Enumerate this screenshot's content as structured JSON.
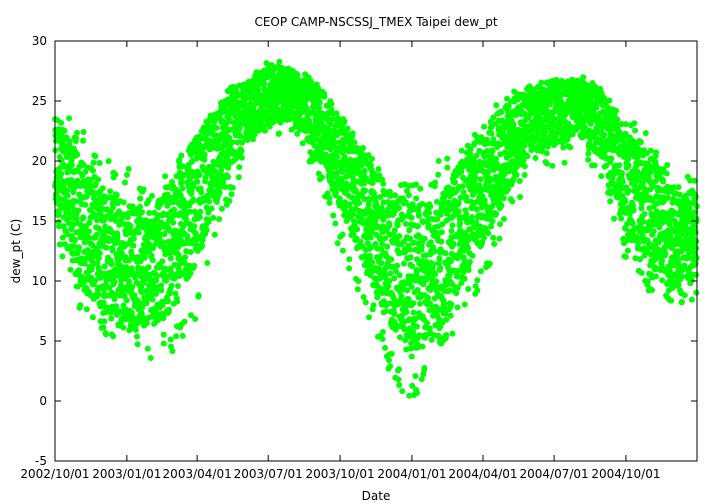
{
  "chart_data": {
    "type": "scatter",
    "title": "CEOP CAMP-NSCSSJ_TMEX Taipei  dew_pt",
    "xlabel": "Date",
    "ylabel": "dew_pt (C)",
    "ylim": [
      -5,
      30
    ],
    "yticks": [
      -5,
      0,
      5,
      10,
      15,
      20,
      25,
      30
    ],
    "xlim": [
      "2002-10-01",
      "2004-12-31"
    ],
    "xticks": [
      "2002/10/01",
      "2003/01/01",
      "2003/04/01",
      "2003/07/01",
      "2003/10/01",
      "2004/01/01",
      "2004/04/01",
      "2004/07/01",
      "2004/10/01"
    ],
    "xtick_dates": [
      "2002-10-01",
      "2003-01-01",
      "2003-04-01",
      "2003-07-01",
      "2003-10-01",
      "2004-01-01",
      "2004-04-01",
      "2004-07-01",
      "2004-10-01"
    ],
    "grid": false,
    "marker_color": "#00ff00",
    "monthly_profile": [
      {
        "month": "2002-10",
        "center": 19.5,
        "low": 13,
        "high": 24.5
      },
      {
        "month": "2002-11",
        "center": 15,
        "low": 7.5,
        "high": 23
      },
      {
        "month": "2002-12",
        "center": 13,
        "low": 5.5,
        "high": 21
      },
      {
        "month": "2003-01",
        "center": 11.5,
        "low": 5,
        "high": 20
      },
      {
        "month": "2003-02",
        "center": 11,
        "low": 3.5,
        "high": 17
      },
      {
        "month": "2003-03",
        "center": 13,
        "low": 4,
        "high": 20
      },
      {
        "month": "2003-04",
        "center": 17,
        "low": 7,
        "high": 22
      },
      {
        "month": "2003-05",
        "center": 21,
        "low": 14,
        "high": 25.5
      },
      {
        "month": "2003-06",
        "center": 24,
        "low": 20,
        "high": 27
      },
      {
        "month": "2003-07",
        "center": 25.5,
        "low": 21.5,
        "high": 28.7
      },
      {
        "month": "2003-08",
        "center": 25.5,
        "low": 22,
        "high": 28
      },
      {
        "month": "2003-09",
        "center": 23.5,
        "low": 19,
        "high": 27
      },
      {
        "month": "2003-10",
        "center": 20,
        "low": 12.5,
        "high": 24
      },
      {
        "month": "2003-11",
        "center": 16,
        "low": 8,
        "high": 22
      },
      {
        "month": "2003-12",
        "center": 12,
        "low": 2.5,
        "high": 18.5
      },
      {
        "month": "2004-01",
        "center": 10,
        "low": -0.4,
        "high": 18
      },
      {
        "month": "2004-02",
        "center": 11,
        "low": 4,
        "high": 20
      },
      {
        "month": "2004-03",
        "center": 14.5,
        "low": 6,
        "high": 21
      },
      {
        "month": "2004-04",
        "center": 18,
        "low": 10,
        "high": 24
      },
      {
        "month": "2004-05",
        "center": 21,
        "low": 14.5,
        "high": 25.5
      },
      {
        "month": "2004-06",
        "center": 23.5,
        "low": 19,
        "high": 26.7
      },
      {
        "month": "2004-07",
        "center": 24,
        "low": 19,
        "high": 27
      },
      {
        "month": "2004-08",
        "center": 24.5,
        "low": 21,
        "high": 27.5
      },
      {
        "month": "2004-09",
        "center": 23,
        "low": 18,
        "high": 26
      },
      {
        "month": "2004-10",
        "center": 18,
        "low": 11.5,
        "high": 23.5
      },
      {
        "month": "2004-11",
        "center": 16,
        "low": 9,
        "high": 22.5
      },
      {
        "month": "2004-12",
        "center": 13.5,
        "low": 7.5,
        "high": 19
      }
    ]
  }
}
